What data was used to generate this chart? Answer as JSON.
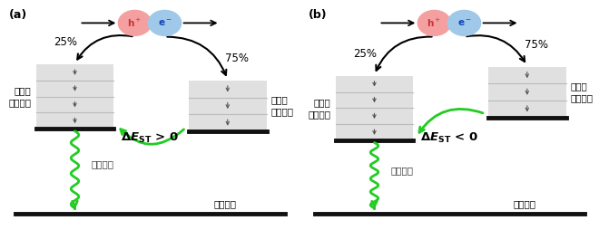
{
  "bg_color": "#ffffff",
  "panel_labels": [
    "(a)",
    "(b)"
  ],
  "h_plus_color": "#f4a0a0",
  "e_minus_color": "#a0c8e8",
  "singlet_label": "一重项\n励起状态",
  "triplet_label": "三重项\n励起状态",
  "delayed_label": "迟延荧光",
  "ground_label": "基底状态",
  "pct_left": "25%",
  "pct_right": "75%",
  "green_color": "#22cc22",
  "box_fill": "#e0e0e0",
  "line_color": "#bbbbbb",
  "bottom_bar_color": "#111111",
  "font_size": 8,
  "label_font_size": 7.5
}
